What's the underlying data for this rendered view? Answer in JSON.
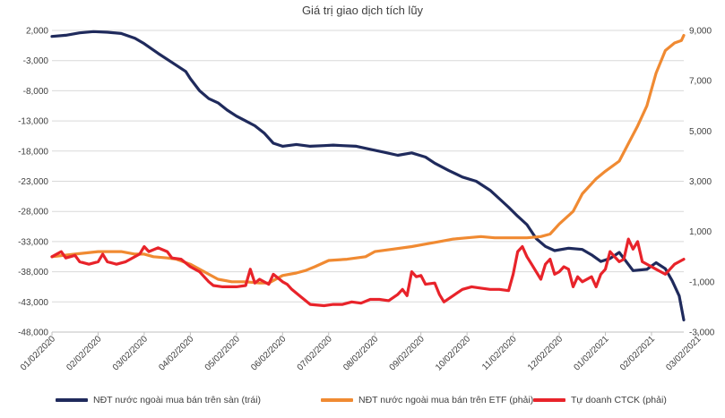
{
  "chart_data": {
    "type": "line",
    "title": "Giá trị giao dịch tích lũy",
    "xlabel": "",
    "ylabel_left": "",
    "ylabel_right": "",
    "ylim_left": [
      -48000,
      2000
    ],
    "ylim_right": [
      -3000,
      9000
    ],
    "y_ticks_left": [
      "2,000",
      "-3,000",
      "-8,000",
      "-13,000",
      "-18,000",
      "-23,000",
      "-28,000",
      "-33,000",
      "-38,000",
      "-43,000",
      "-48,000"
    ],
    "y_ticks_right": [
      "9,000",
      "7,000",
      "5,000",
      "3,000",
      "1,000",
      "-1,000",
      "-3,000"
    ],
    "x_ticks": [
      "01/02/2020",
      "02/02/2020",
      "03/02/2020",
      "04/02/2020",
      "05/02/2020",
      "06/02/2020",
      "07/02/2020",
      "08/02/2020",
      "09/02/2020",
      "10/02/2020",
      "11/02/2020",
      "12/02/2020",
      "01/02/2021",
      "02/02/2021",
      "03/02/2021"
    ],
    "x_range": [
      0,
      13.7
    ],
    "grid": true,
    "legend_position": "bottom",
    "series": [
      {
        "name": "NĐT nước ngoài mua bán trên sàn (trái)",
        "axis": "left",
        "color": "#1f2a5c",
        "points": [
          [
            0,
            1000
          ],
          [
            0.3,
            1200
          ],
          [
            0.6,
            1600
          ],
          [
            0.9,
            1800
          ],
          [
            1.2,
            1700
          ],
          [
            1.5,
            1500
          ],
          [
            1.8,
            700
          ],
          [
            2.0,
            -200
          ],
          [
            2.3,
            -1800
          ],
          [
            2.6,
            -3300
          ],
          [
            2.9,
            -4800
          ],
          [
            3.0,
            -6000
          ],
          [
            3.2,
            -8000
          ],
          [
            3.4,
            -9300
          ],
          [
            3.6,
            -10000
          ],
          [
            3.8,
            -11200
          ],
          [
            4.0,
            -12200
          ],
          [
            4.2,
            -13000
          ],
          [
            4.4,
            -13800
          ],
          [
            4.6,
            -15000
          ],
          [
            4.8,
            -16700
          ],
          [
            5.0,
            -17200
          ],
          [
            5.3,
            -16900
          ],
          [
            5.6,
            -17200
          ],
          [
            5.9,
            -17100
          ],
          [
            6.1,
            -17000
          ],
          [
            6.3,
            -17100
          ],
          [
            6.6,
            -17200
          ],
          [
            6.9,
            -17700
          ],
          [
            7.2,
            -18200
          ],
          [
            7.5,
            -18700
          ],
          [
            7.8,
            -18300
          ],
          [
            8.1,
            -19000
          ],
          [
            8.3,
            -20000
          ],
          [
            8.6,
            -21200
          ],
          [
            8.9,
            -22300
          ],
          [
            9.2,
            -23000
          ],
          [
            9.5,
            -24500
          ],
          [
            9.7,
            -25900
          ],
          [
            9.9,
            -27300
          ],
          [
            10.1,
            -28800
          ],
          [
            10.3,
            -30200
          ],
          [
            10.5,
            -32500
          ],
          [
            10.7,
            -33800
          ],
          [
            10.9,
            -34500
          ],
          [
            11.2,
            -34100
          ],
          [
            11.5,
            -34300
          ],
          [
            11.7,
            -35200
          ],
          [
            11.9,
            -36300
          ],
          [
            12.1,
            -35800
          ],
          [
            12.3,
            -34800
          ],
          [
            12.6,
            -37800
          ],
          [
            12.9,
            -37600
          ],
          [
            13.1,
            -36500
          ],
          [
            13.3,
            -37500
          ],
          [
            13.45,
            -39500
          ],
          [
            13.6,
            -42000
          ],
          [
            13.7,
            -46000
          ]
        ]
      },
      {
        "name": "NĐT nước ngoài mua bán trên ETF (phải)",
        "axis": "right",
        "color": "#f08a32",
        "points": [
          [
            0,
            0
          ],
          [
            0.5,
            100
          ],
          [
            1.0,
            200
          ],
          [
            1.5,
            200
          ],
          [
            1.8,
            100
          ],
          [
            2.0,
            100
          ],
          [
            2.2,
            0
          ],
          [
            2.5,
            -50
          ],
          [
            2.7,
            -100
          ],
          [
            3.0,
            -300
          ],
          [
            3.2,
            -500
          ],
          [
            3.4,
            -700
          ],
          [
            3.6,
            -900
          ],
          [
            3.9,
            -1000
          ],
          [
            4.2,
            -1000
          ],
          [
            4.5,
            -1050
          ],
          [
            4.7,
            -1050
          ],
          [
            5.0,
            -750
          ],
          [
            5.3,
            -650
          ],
          [
            5.5,
            -550
          ],
          [
            5.7,
            -400
          ],
          [
            6.0,
            -150
          ],
          [
            6.4,
            -100
          ],
          [
            6.8,
            0
          ],
          [
            7.0,
            200
          ],
          [
            7.4,
            300
          ],
          [
            7.8,
            400
          ],
          [
            8.1,
            500
          ],
          [
            8.4,
            600
          ],
          [
            8.7,
            700
          ],
          [
            9.0,
            750
          ],
          [
            9.3,
            800
          ],
          [
            9.6,
            750
          ],
          [
            10.0,
            750
          ],
          [
            10.3,
            750
          ],
          [
            10.6,
            800
          ],
          [
            10.8,
            900
          ],
          [
            11.0,
            1300
          ],
          [
            11.3,
            1800
          ],
          [
            11.5,
            2500
          ],
          [
            11.8,
            3100
          ],
          [
            12.0,
            3400
          ],
          [
            12.3,
            3800
          ],
          [
            12.5,
            4500
          ],
          [
            12.7,
            5200
          ],
          [
            12.9,
            6000
          ],
          [
            13.1,
            7300
          ],
          [
            13.3,
            8200
          ],
          [
            13.5,
            8500
          ],
          [
            13.65,
            8600
          ],
          [
            13.7,
            8800
          ]
        ]
      },
      {
        "name": "Tự doanh CTCK (phải)",
        "axis": "right",
        "color": "#e8232a",
        "points": [
          [
            0,
            0
          ],
          [
            0.2,
            200
          ],
          [
            0.3,
            -50
          ],
          [
            0.5,
            50
          ],
          [
            0.6,
            -200
          ],
          [
            0.8,
            -300
          ],
          [
            1.0,
            -200
          ],
          [
            1.1,
            100
          ],
          [
            1.2,
            -200
          ],
          [
            1.4,
            -300
          ],
          [
            1.6,
            -200
          ],
          [
            1.9,
            100
          ],
          [
            2.0,
            400
          ],
          [
            2.1,
            200
          ],
          [
            2.3,
            350
          ],
          [
            2.5,
            200
          ],
          [
            2.6,
            -50
          ],
          [
            2.8,
            -100
          ],
          [
            3.0,
            -400
          ],
          [
            3.2,
            -600
          ],
          [
            3.3,
            -800
          ],
          [
            3.4,
            -1000
          ],
          [
            3.5,
            -1150
          ],
          [
            3.7,
            -1200
          ],
          [
            4.0,
            -1200
          ],
          [
            4.2,
            -1150
          ],
          [
            4.3,
            -500
          ],
          [
            4.4,
            -1050
          ],
          [
            4.5,
            -900
          ],
          [
            4.7,
            -1100
          ],
          [
            4.8,
            -700
          ],
          [
            5.0,
            -1000
          ],
          [
            5.1,
            -1100
          ],
          [
            5.2,
            -1300
          ],
          [
            5.4,
            -1600
          ],
          [
            5.6,
            -1900
          ],
          [
            5.9,
            -1950
          ],
          [
            6.1,
            -1900
          ],
          [
            6.3,
            -1900
          ],
          [
            6.5,
            -1800
          ],
          [
            6.7,
            -1850
          ],
          [
            6.9,
            -1700
          ],
          [
            7.1,
            -1700
          ],
          [
            7.3,
            -1750
          ],
          [
            7.5,
            -1500
          ],
          [
            7.6,
            -1300
          ],
          [
            7.7,
            -1550
          ],
          [
            7.8,
            -600
          ],
          [
            7.9,
            -800
          ],
          [
            8.0,
            -750
          ],
          [
            8.1,
            -1100
          ],
          [
            8.3,
            -1050
          ],
          [
            8.4,
            -1500
          ],
          [
            8.5,
            -1800
          ],
          [
            8.7,
            -1550
          ],
          [
            8.9,
            -1300
          ],
          [
            9.1,
            -1200
          ],
          [
            9.3,
            -1250
          ],
          [
            9.5,
            -1300
          ],
          [
            9.7,
            -1300
          ],
          [
            9.9,
            -1350
          ],
          [
            10.0,
            -700
          ],
          [
            10.1,
            200
          ],
          [
            10.2,
            400
          ],
          [
            10.3,
            0
          ],
          [
            10.4,
            -300
          ],
          [
            10.5,
            -600
          ],
          [
            10.6,
            -900
          ],
          [
            10.7,
            -300
          ],
          [
            10.8,
            -100
          ],
          [
            10.9,
            -700
          ],
          [
            11.0,
            -600
          ],
          [
            11.1,
            -400
          ],
          [
            11.2,
            -500
          ],
          [
            11.3,
            -1200
          ],
          [
            11.4,
            -800
          ],
          [
            11.5,
            -1000
          ],
          [
            11.7,
            -800
          ],
          [
            11.8,
            -1200
          ],
          [
            11.9,
            -700
          ],
          [
            12.0,
            -500
          ],
          [
            12.1,
            200
          ],
          [
            12.2,
            0
          ],
          [
            12.3,
            -200
          ],
          [
            12.4,
            -100
          ],
          [
            12.5,
            700
          ],
          [
            12.6,
            300
          ],
          [
            12.7,
            600
          ],
          [
            12.8,
            -200
          ],
          [
            13.0,
            -400
          ],
          [
            13.1,
            -500
          ],
          [
            13.2,
            -600
          ],
          [
            13.3,
            -700
          ],
          [
            13.4,
            -500
          ],
          [
            13.5,
            -300
          ],
          [
            13.6,
            -200
          ],
          [
            13.7,
            -100
          ]
        ]
      }
    ]
  }
}
